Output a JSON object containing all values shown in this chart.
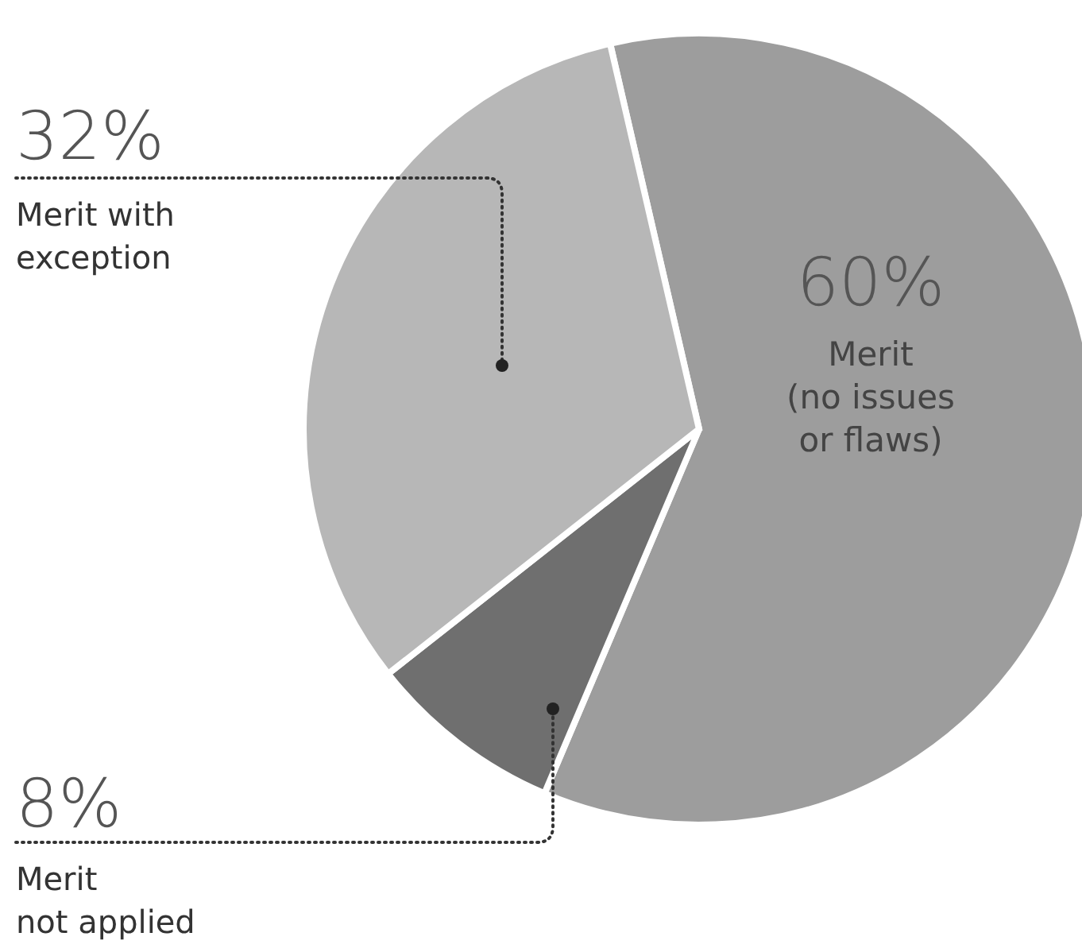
{
  "chart_data": {
    "type": "pie",
    "categories": [
      "Merit\n(no issues\nor flaws)",
      "Merit\nnot applied",
      "Merit with\nexception"
    ],
    "values": [
      60,
      8,
      32
    ],
    "colors": [
      "#9d9d9d",
      "#6f6f6f",
      "#b7b7b7"
    ],
    "value_labels": [
      "60%",
      "8%",
      "32%"
    ]
  }
}
